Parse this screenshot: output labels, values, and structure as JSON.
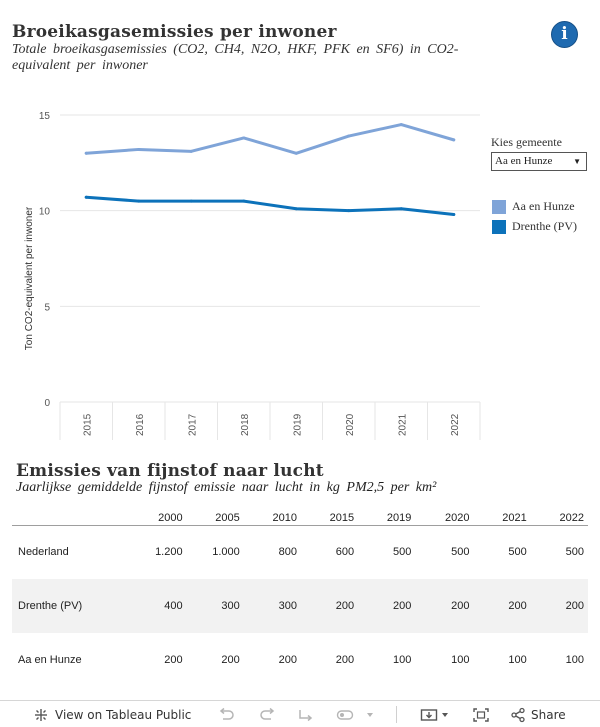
{
  "chart1": {
    "title": "Broeikasgasemissies per inwoner",
    "subtitle": "Totale broeikasgasemissies (CO2, CH4, N2O, HKF, PFK en SF6) in CO2-equivalent per inwoner",
    "info_symbol": "i"
  },
  "filter": {
    "label": "Kies gemeente",
    "selected": "Aa en Hunze",
    "arrow": "▼"
  },
  "colors": {
    "aa_en_hunze": "#7fa4d8",
    "drenthe": "#0c72ba",
    "grid": "#e6e6e6",
    "row_shade": "#f2f2f2"
  },
  "chart_data": {
    "type": "line",
    "title": "Broeikasgasemissies per inwoner",
    "xlabel": "",
    "ylabel": "Ton CO2-equivalent per inwoner",
    "x": [
      "2015",
      "2016",
      "2017",
      "2018",
      "2019",
      "2020",
      "2021",
      "2022"
    ],
    "ylim": [
      0,
      15
    ],
    "yticks": [
      0,
      5,
      10,
      15
    ],
    "series": [
      {
        "name": "Aa en Hunze",
        "values": [
          13.0,
          13.2,
          13.1,
          13.8,
          13.0,
          13.9,
          14.5,
          13.7
        ]
      },
      {
        "name": "Drenthe (PV)",
        "values": [
          10.7,
          10.5,
          10.5,
          10.5,
          10.1,
          10.0,
          10.1,
          9.8
        ]
      }
    ],
    "legend": "right"
  },
  "table": {
    "title": "Emissies van fijnstof naar lucht",
    "subtitle": "Jaarlijkse gemiddelde fijnstof emissie naar lucht in kg PM2,5 per km²",
    "columns": [
      "2000",
      "2005",
      "2010",
      "2015",
      "2019",
      "2020",
      "2021",
      "2022"
    ],
    "rows": [
      {
        "label": "Nederland",
        "values": [
          "1.200",
          "1.000",
          "800",
          "600",
          "500",
          "500",
          "500",
          "500"
        ]
      },
      {
        "label": "Drenthe (PV)",
        "values": [
          "400",
          "300",
          "300",
          "200",
          "200",
          "200",
          "200",
          "200"
        ]
      },
      {
        "label": "Aa en Hunze",
        "values": [
          "200",
          "200",
          "200",
          "200",
          "100",
          "100",
          "100",
          "100"
        ]
      }
    ]
  },
  "footer": {
    "view_label": "View on Tableau Public",
    "share_label": "Share"
  }
}
